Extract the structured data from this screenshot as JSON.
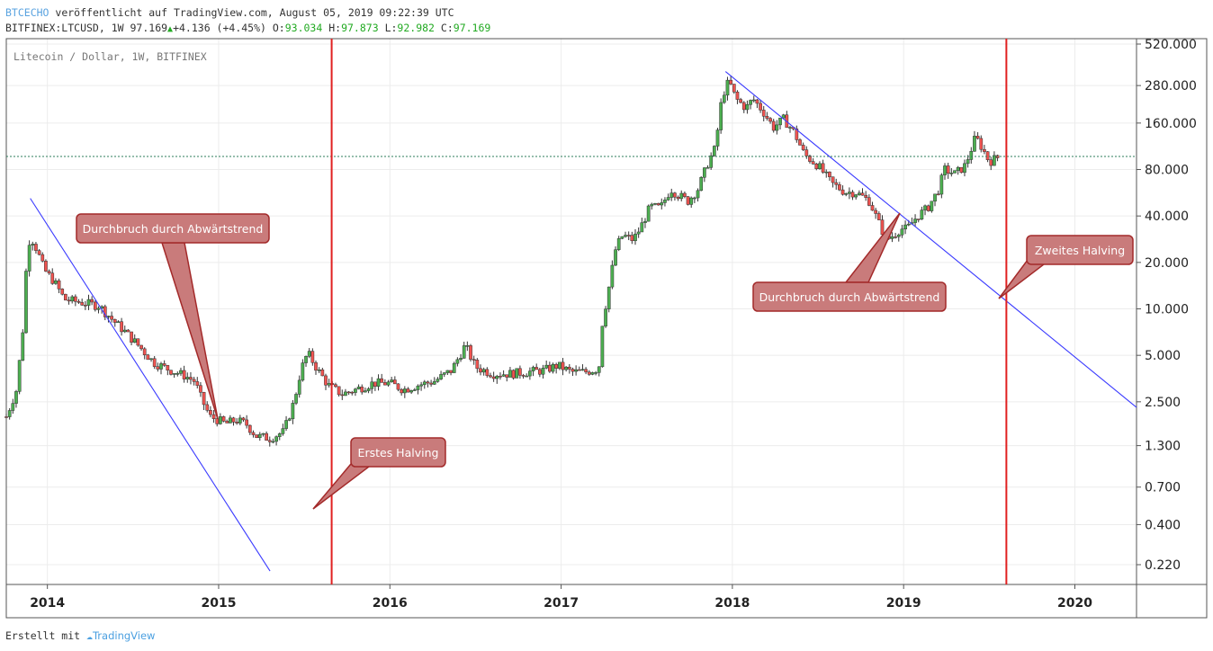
{
  "header": {
    "publisher": "BTCECHO",
    "published_text": "veröffentlicht auf TradingView.com, August 05, 2019 09:22:39 UTC",
    "symbol": "BITFINEX:LTCUSD, 1W",
    "last": "97.169",
    "change": "+4.136 (+4.45%)",
    "o_label": "O:",
    "o": "93.034",
    "h_label": "H:",
    "h": "97.873",
    "l_label": "L:",
    "l": "92.982",
    "c_label": "C:",
    "c": "97.169"
  },
  "footer": {
    "created_with": "Erstellt mit",
    "brand": "TradingView"
  },
  "colors": {
    "up": "#4caf50",
    "down": "#ef5350",
    "trendline": "#3b3bff",
    "halving_line": "#e02020",
    "callout_fill": "#c97b7b",
    "callout_border": "#a32a2a",
    "price_line": "#2e7d5b"
  },
  "chart_data": {
    "type": "candlestick",
    "title": "Litecoin / Dollar, 1W, BITFINEX",
    "scale": "log",
    "grid": true,
    "y_ticks": [
      {
        "value": 0.22,
        "label": "0.220"
      },
      {
        "value": 0.4,
        "label": "0.400"
      },
      {
        "value": 0.7,
        "label": "0.700"
      },
      {
        "value": 1.3,
        "label": "1.300"
      },
      {
        "value": 2.5,
        "label": "2.500"
      },
      {
        "value": 5,
        "label": "5.000"
      },
      {
        "value": 10,
        "label": "10.000"
      },
      {
        "value": 20,
        "label": "20.000"
      },
      {
        "value": 40,
        "label": "40.000"
      },
      {
        "value": 80,
        "label": "80.000"
      },
      {
        "value": 160,
        "label": "160.000"
      },
      {
        "value": 280,
        "label": "280.000"
      },
      {
        "value": 520,
        "label": "520.000"
      }
    ],
    "x_ticks": [
      "2014",
      "2015",
      "2016",
      "2017",
      "2018",
      "2019",
      "2020"
    ],
    "x_range": [
      2013.76,
      2020.36
    ],
    "last_price": 97.169,
    "price_series": [
      [
        2013.76,
        2.0
      ],
      [
        2013.82,
        3.0
      ],
      [
        2013.86,
        8.0
      ],
      [
        2013.88,
        22.0
      ],
      [
        2013.9,
        30.0
      ],
      [
        2013.94,
        24.0
      ],
      [
        2013.98,
        18.0
      ],
      [
        2014.04,
        15.0
      ],
      [
        2014.1,
        11.5
      ],
      [
        2014.2,
        11.0
      ],
      [
        2014.3,
        10.5
      ],
      [
        2014.38,
        8.5
      ],
      [
        2014.46,
        7.0
      ],
      [
        2014.55,
        5.5
      ],
      [
        2014.62,
        4.5
      ],
      [
        2014.72,
        4.0
      ],
      [
        2014.8,
        3.7
      ],
      [
        2014.86,
        3.4
      ],
      [
        2014.9,
        2.6
      ],
      [
        2014.95,
        2.0
      ],
      [
        2015.0,
        1.9
      ],
      [
        2015.04,
        1.8
      ],
      [
        2015.1,
        1.9
      ],
      [
        2015.16,
        1.8
      ],
      [
        2015.22,
        1.5
      ],
      [
        2015.3,
        1.45
      ],
      [
        2015.38,
        1.6
      ],
      [
        2015.44,
        2.5
      ],
      [
        2015.48,
        4.0
      ],
      [
        2015.52,
        5.2
      ],
      [
        2015.58,
        4.0
      ],
      [
        2015.64,
        3.2
      ],
      [
        2015.72,
        2.8
      ],
      [
        2015.8,
        3.0
      ],
      [
        2015.9,
        3.3
      ],
      [
        2016.0,
        3.3
      ],
      [
        2016.08,
        3.0
      ],
      [
        2016.16,
        3.2
      ],
      [
        2016.26,
        3.4
      ],
      [
        2016.36,
        4.0
      ],
      [
        2016.44,
        5.8
      ],
      [
        2016.5,
        4.2
      ],
      [
        2016.6,
        3.8
      ],
      [
        2016.7,
        3.8
      ],
      [
        2016.8,
        3.9
      ],
      [
        2016.9,
        4.0
      ],
      [
        2016.98,
        4.3
      ],
      [
        2017.06,
        3.9
      ],
      [
        2017.14,
        3.9
      ],
      [
        2017.22,
        4.1
      ],
      [
        2017.24,
        8.0
      ],
      [
        2017.28,
        14.0
      ],
      [
        2017.32,
        25.0
      ],
      [
        2017.36,
        30.0
      ],
      [
        2017.42,
        28.0
      ],
      [
        2017.46,
        33.0
      ],
      [
        2017.52,
        46.0
      ],
      [
        2017.58,
        45.0
      ],
      [
        2017.64,
        60.0
      ],
      [
        2017.68,
        55.0
      ],
      [
        2017.74,
        50.0
      ],
      [
        2017.8,
        60.0
      ],
      [
        2017.86,
        90.0
      ],
      [
        2017.9,
        110.0
      ],
      [
        2017.94,
        240.0
      ],
      [
        2017.98,
        300.0
      ],
      [
        2018.02,
        230.0
      ],
      [
        2018.08,
        200.0
      ],
      [
        2018.12,
        230.0
      ],
      [
        2018.18,
        190.0
      ],
      [
        2018.24,
        150.0
      ],
      [
        2018.3,
        170.0
      ],
      [
        2018.36,
        140.0
      ],
      [
        2018.42,
        100.0
      ],
      [
        2018.5,
        85.0
      ],
      [
        2018.58,
        65.0
      ],
      [
        2018.66,
        57.0
      ],
      [
        2018.72,
        57.0
      ],
      [
        2018.8,
        50.0
      ],
      [
        2018.86,
        35.0
      ],
      [
        2018.9,
        28.0
      ],
      [
        2018.94,
        30.0
      ],
      [
        2018.98,
        33.0
      ],
      [
        2019.02,
        33.0
      ],
      [
        2019.08,
        40.0
      ],
      [
        2019.14,
        45.0
      ],
      [
        2019.2,
        58.0
      ],
      [
        2019.24,
        80.0
      ],
      [
        2019.3,
        75.0
      ],
      [
        2019.36,
        85.0
      ],
      [
        2019.42,
        130.0
      ],
      [
        2019.46,
        110.0
      ],
      [
        2019.5,
        90.0
      ],
      [
        2019.56,
        97.0
      ]
    ],
    "trendlines": [
      {
        "from": [
          2013.9,
          52
        ],
        "to": [
          2015.3,
          0.2
        ]
      },
      {
        "from": [
          2017.96,
          345
        ],
        "to": [
          2020.36,
          2.3
        ]
      }
    ],
    "halvings": [
      {
        "x": 2015.66
      },
      {
        "x": 2019.6
      }
    ],
    "annotations": [
      {
        "text": "Durchbruch durch Abwärtstrend"
      },
      {
        "text": "Erstes Halving"
      },
      {
        "text": "Durchbruch durch Abwärtstrend"
      },
      {
        "text": "Zweites Halving"
      }
    ]
  }
}
